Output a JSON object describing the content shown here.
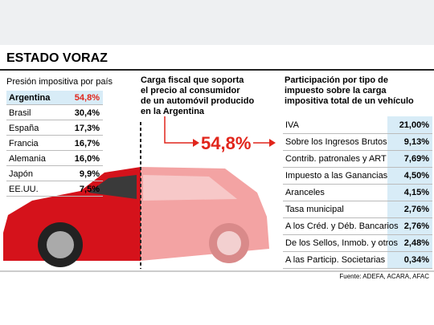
{
  "header": {
    "title": "ESTADO VORAZ"
  },
  "countries": {
    "title": "Presión impositiva por país",
    "rows": [
      [
        "Argentina",
        "54,8%"
      ],
      [
        "Brasil",
        "30,4%"
      ],
      [
        "España",
        "17,3%"
      ],
      [
        "Francia",
        "16,7%"
      ],
      [
        "Alemania",
        "16,0%"
      ],
      [
        "Japón",
        "9,9%"
      ],
      [
        "EE.UU.",
        "7,5%"
      ]
    ]
  },
  "center": {
    "lines": [
      "Carga fiscal que soporta",
      "el precio al consumidor",
      "de un automóvil producido",
      "en la Argentina"
    ],
    "value": "54,8%"
  },
  "breakdown": {
    "lines": [
      "Participación por tipo de",
      "impuesto sobre la carga",
      "impositiva total de un vehículo"
    ],
    "rows": [
      [
        "IVA",
        "21,00%"
      ],
      [
        "Sobre los Ingresos Brutos",
        "9,13%"
      ],
      [
        "Contrib. patronales y ART",
        "7,69%"
      ],
      [
        "Impuesto a las Ganancias",
        "4,50%"
      ],
      [
        "Aranceles",
        "4,15%"
      ],
      [
        "Tasa municipal",
        "2,76%"
      ],
      [
        "A los Créd. y Déb. Bancarios",
        "2,76%"
      ],
      [
        "De los Sellos, Inmob. y otros",
        "2,48%"
      ],
      [
        "A las Particip. Societarias",
        "0,34%"
      ]
    ]
  },
  "source": "Fuente: ADEFA, ACARA, AFAC"
}
